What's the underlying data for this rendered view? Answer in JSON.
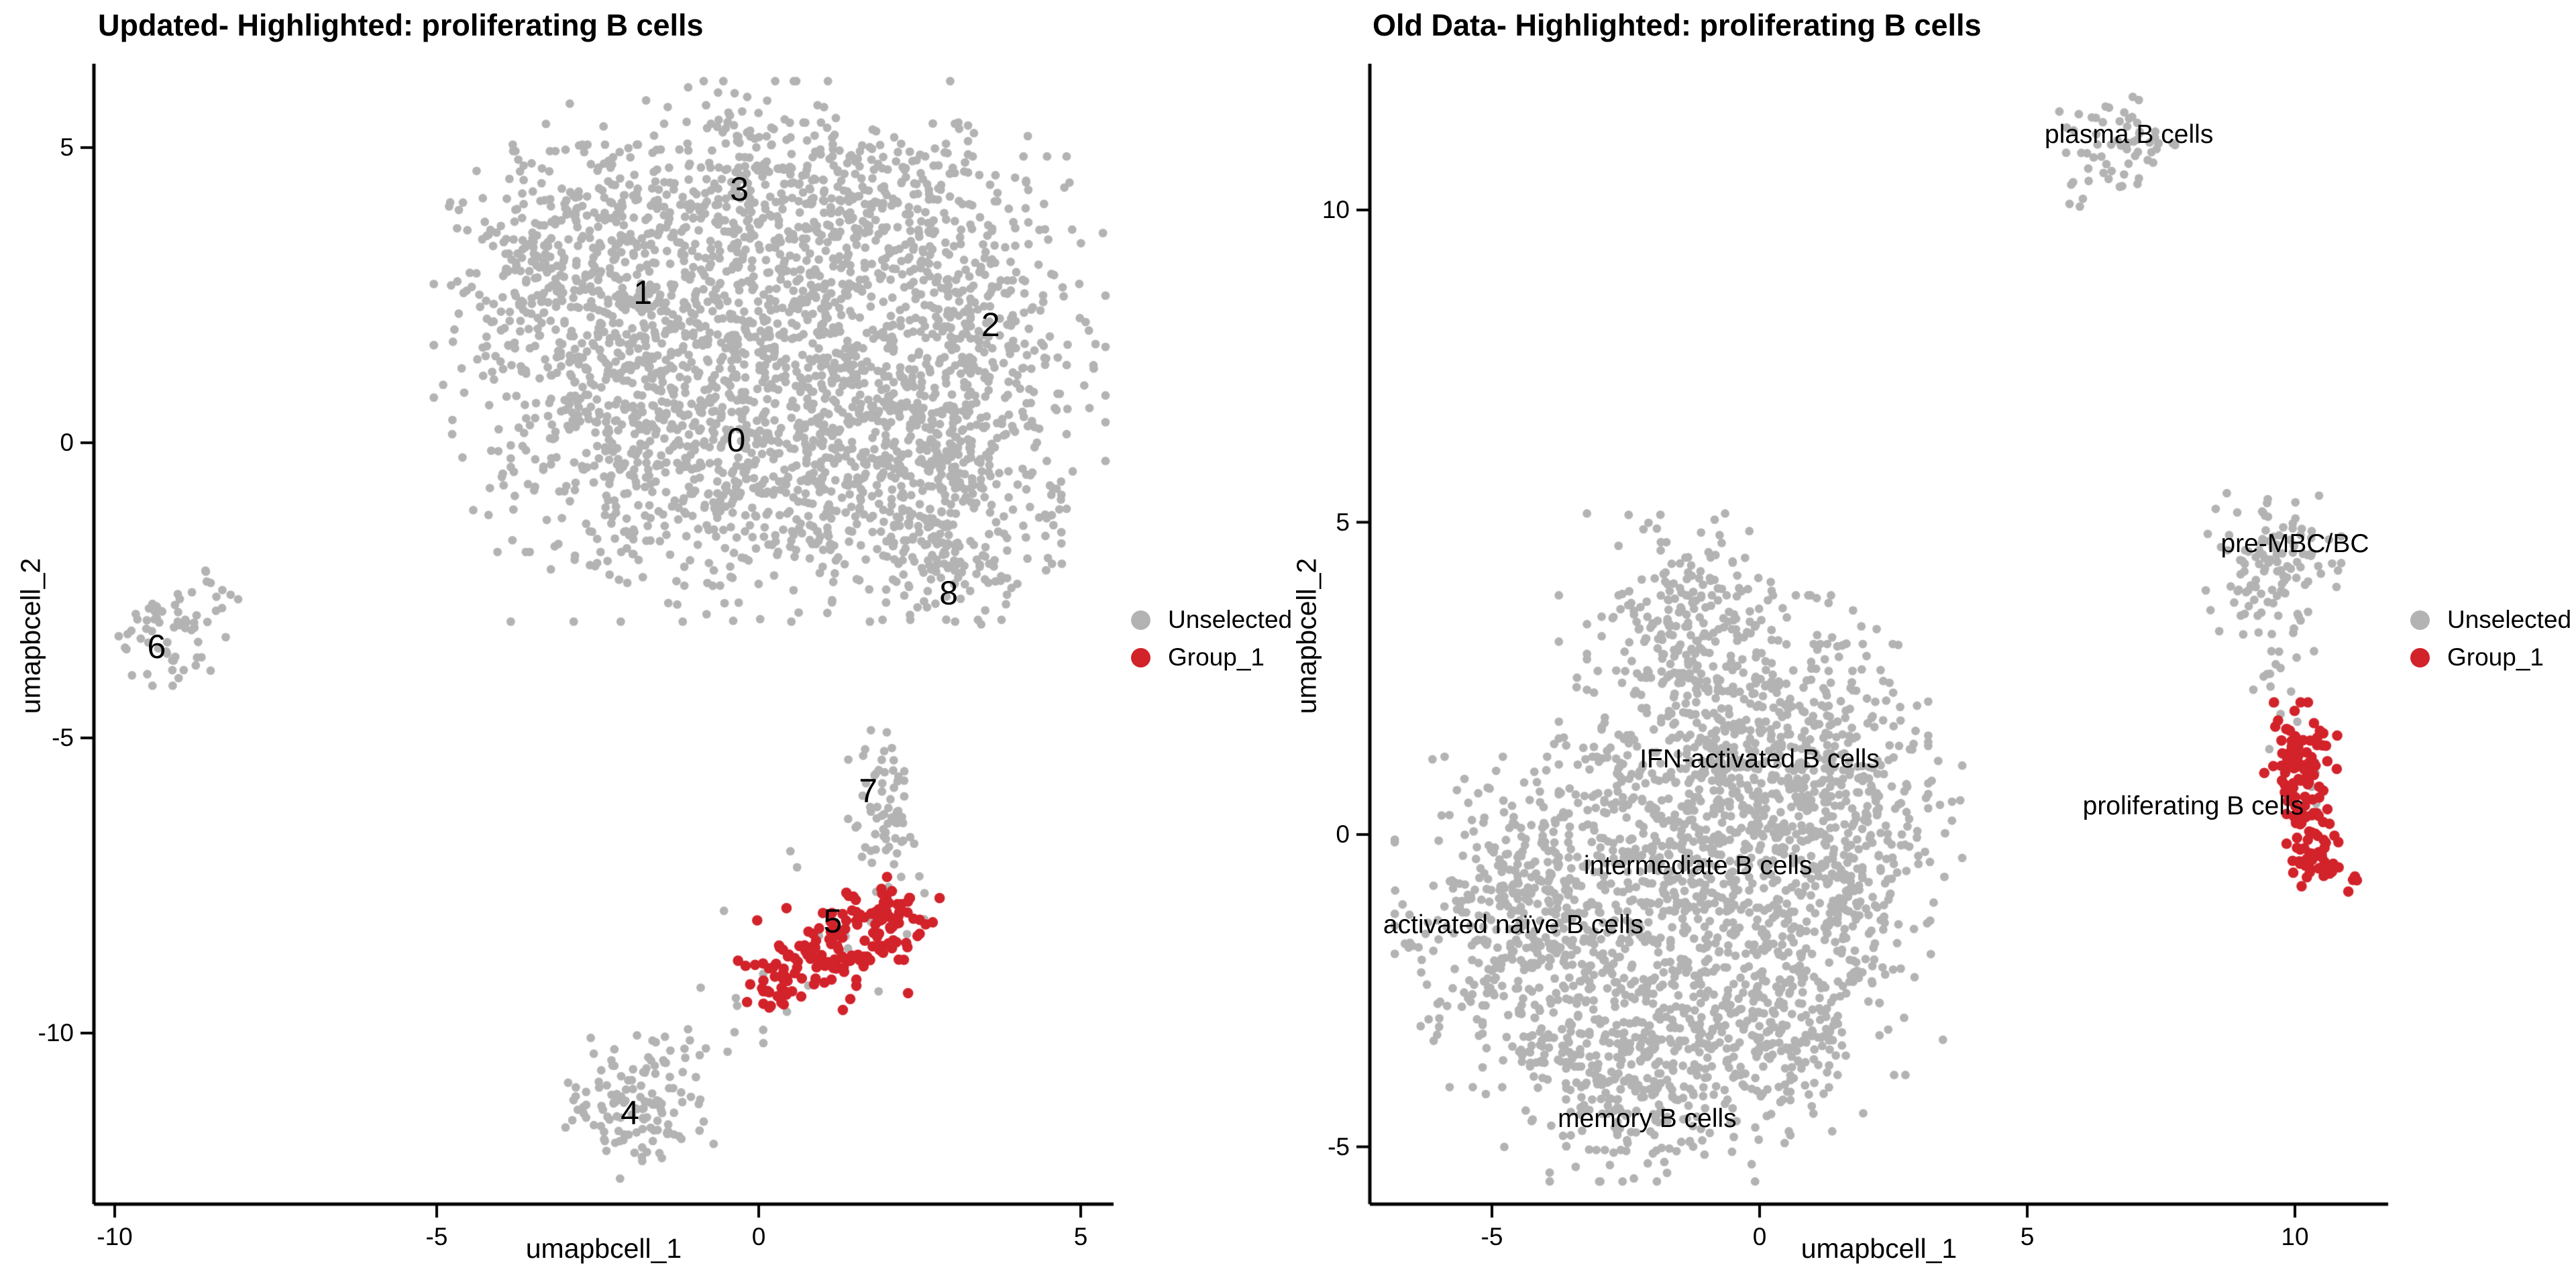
{
  "figure": {
    "background": "#FFFFFF",
    "axis_color": "#000000",
    "text_color": "#000000",
    "unselected_color": "#B3B3B3",
    "highlight_color": "#D2222A"
  },
  "legend": {
    "items": [
      {
        "label": "Unselected",
        "color": "#B3B3B3"
      },
      {
        "label": "Group_1",
        "color": "#D2222A"
      }
    ]
  },
  "chart_data": [
    {
      "id": "updated-panel",
      "type": "scatter",
      "title": "Updated- Highlighted: proliferating B cells",
      "xlabel": "umapbcell_1",
      "ylabel": "umapbcell_2",
      "xlim": [
        -10.3,
        5.5
      ],
      "ylim": [
        -12.9,
        6.4
      ],
      "xticks": [
        -10,
        -5,
        0,
        5
      ],
      "yticks": [
        5,
        0,
        -5,
        -10
      ],
      "grid": false,
      "legend_position": "right",
      "label_font_size": 50,
      "cluster_labels": [
        {
          "text": "3",
          "x": -0.3,
          "y": 4.3
        },
        {
          "text": "1",
          "x": -1.8,
          "y": 2.55
        },
        {
          "text": "2",
          "x": 3.6,
          "y": 2.0
        },
        {
          "text": "0",
          "x": -0.35,
          "y": 0.05
        },
        {
          "text": "8",
          "x": 2.95,
          "y": -2.55
        },
        {
          "text": "6",
          "x": -9.35,
          "y": -3.45
        },
        {
          "text": "7",
          "x": 1.7,
          "y": -5.9
        },
        {
          "text": "5",
          "x": 1.15,
          "y": -8.1
        },
        {
          "text": "4",
          "x": -2.0,
          "y": -11.35
        }
      ],
      "series": [
        {
          "name": "Unselected",
          "color": "#B3B3B3",
          "clusters": [
            {
              "cx": -0.2,
              "cy": 4.4,
              "sx": 1.5,
              "sy": 0.75,
              "n": 330
            },
            {
              "cx": -2.4,
              "cy": 1.6,
              "sx": 1.15,
              "sy": 1.5,
              "n": 520
            },
            {
              "cx": 0.3,
              "cy": 1.9,
              "sx": 1.3,
              "sy": 1.2,
              "n": 560
            },
            {
              "cx": 3.2,
              "cy": 1.4,
              "sx": 0.95,
              "sy": 1.5,
              "n": 430
            },
            {
              "cx": -0.4,
              "cy": -0.5,
              "sx": 1.5,
              "sy": 1.1,
              "n": 520
            },
            {
              "cx": 2.4,
              "cy": -0.7,
              "sx": 1.0,
              "sy": 1.0,
              "n": 290
            },
            {
              "cx": -3.1,
              "cy": 3.1,
              "sx": 0.75,
              "sy": 0.8,
              "n": 160
            },
            {
              "cx": 1.9,
              "cy": 3.7,
              "sx": 1.1,
              "sy": 0.75,
              "n": 200
            },
            {
              "cx": 3.05,
              "cy": -2.2,
              "sx": 0.42,
              "sy": 0.45,
              "n": 55
            },
            {
              "cx": 2.6,
              "cy": -1.6,
              "sx": 0.5,
              "sy": 0.4,
              "n": 18
            },
            {
              "cx": -9.15,
              "cy": -3.15,
              "sx": 0.38,
              "sy": 0.42,
              "n": 60
            },
            {
              "cx": -8.4,
              "cy": -2.55,
              "sx": 0.25,
              "sy": 0.2,
              "n": 7
            },
            {
              "cx": 1.85,
              "cy": -5.95,
              "sx": 0.27,
              "sy": 0.5,
              "n": 55
            },
            {
              "cx": 2.1,
              "cy": -6.9,
              "sx": 0.2,
              "sy": 0.35,
              "n": 14
            },
            {
              "cx": 1.3,
              "cy": -8.3,
              "sx": 0.8,
              "sy": 0.6,
              "n": 14
            },
            {
              "cx": -0.3,
              "cy": -9.9,
              "sx": 0.45,
              "sy": 0.35,
              "n": 9
            },
            {
              "cx": -1.85,
              "cy": -11.2,
              "sx": 0.5,
              "sy": 0.55,
              "n": 135
            }
          ]
        },
        {
          "name": "Group_1",
          "color": "#D2222A",
          "clusters": [
            {
              "cx": 0.55,
              "cy": -8.85,
              "sx": 0.42,
              "sy": 0.33,
              "n": 55
            },
            {
              "cx": 1.35,
              "cy": -8.45,
              "sx": 0.5,
              "sy": 0.38,
              "n": 70
            },
            {
              "cx": 2.05,
              "cy": -7.95,
              "sx": 0.33,
              "sy": 0.28,
              "n": 45
            },
            {
              "cx": 0.2,
              "cy": -9.35,
              "sx": 0.2,
              "sy": 0.18,
              "n": 12
            }
          ]
        }
      ]
    },
    {
      "id": "old-data-panel",
      "type": "scatter",
      "title": "Old Data- Highlighted: proliferating B cells",
      "xlabel": "umapbcell_1",
      "ylabel": "umapbcell_2",
      "xlim": [
        -7.3,
        11.7
      ],
      "ylim": [
        -5.9,
        12.3
      ],
      "xticks": [
        -5,
        0,
        5,
        10
      ],
      "yticks": [
        10,
        5,
        0,
        -5
      ],
      "grid": false,
      "legend_position": "right",
      "label_font_size": 39,
      "cluster_labels": [
        {
          "text": "plasma B cells",
          "x": 6.9,
          "y": 11.2
        },
        {
          "text": "pre-MBC/BC",
          "x": 10.0,
          "y": 4.65
        },
        {
          "text": "IFN-activated B cells",
          "x": 0.0,
          "y": 1.2
        },
        {
          "text": "intermediate B cells",
          "x": -1.15,
          "y": -0.5
        },
        {
          "text": "activated naïve B cells",
          "x": -4.6,
          "y": -1.45
        },
        {
          "text": "memory B cells",
          "x": -2.1,
          "y": -4.55
        },
        {
          "text": "proliferating B cells",
          "x": 8.1,
          "y": 0.45
        }
      ],
      "series": [
        {
          "name": "Unselected",
          "color": "#B3B3B3",
          "clusters": [
            {
              "cx": -1.5,
              "cy": 3.3,
              "sx": 0.75,
              "sy": 0.8,
              "n": 210
            },
            {
              "cx": -0.3,
              "cy": 1.3,
              "sx": 1.5,
              "sy": 1.1,
              "n": 540
            },
            {
              "cx": -4.4,
              "cy": -1.4,
              "sx": 1.05,
              "sy": 1.15,
              "n": 430
            },
            {
              "cx": -1.3,
              "cy": -0.7,
              "sx": 1.4,
              "sy": 1.15,
              "n": 480
            },
            {
              "cx": 1.6,
              "cy": -0.4,
              "sx": 0.95,
              "sy": 1.5,
              "n": 380
            },
            {
              "cx": -2.3,
              "cy": -3.6,
              "sx": 1.25,
              "sy": 0.85,
              "n": 420
            },
            {
              "cx": 0.4,
              "cy": -3.1,
              "sx": 0.8,
              "sy": 0.8,
              "n": 190
            },
            {
              "cx": 6.75,
              "cy": 11.0,
              "sx": 0.5,
              "sy": 0.38,
              "n": 55
            },
            {
              "cx": 6.0,
              "cy": 10.45,
              "sx": 0.25,
              "sy": 0.2,
              "n": 8
            },
            {
              "cx": 9.6,
              "cy": 4.2,
              "sx": 0.55,
              "sy": 0.55,
              "n": 115
            },
            {
              "cx": 9.6,
              "cy": 2.9,
              "sx": 0.3,
              "sy": 0.35,
              "n": 12
            },
            {
              "cx": 9.7,
              "cy": 1.8,
              "sx": 0.45,
              "sy": 0.3,
              "n": 6
            },
            {
              "cx": 10.3,
              "cy": 0.4,
              "sx": 0.25,
              "sy": 0.3,
              "n": 5
            }
          ]
        },
        {
          "name": "Group_1",
          "color": "#D2222A",
          "clusters": [
            {
              "cx": 10.1,
              "cy": 1.15,
              "sx": 0.3,
              "sy": 0.42,
              "n": 85
            },
            {
              "cx": 10.35,
              "cy": 0.1,
              "sx": 0.22,
              "sy": 0.35,
              "n": 35
            },
            {
              "cx": 10.6,
              "cy": -0.5,
              "sx": 0.28,
              "sy": 0.18,
              "n": 35
            }
          ]
        }
      ]
    }
  ]
}
